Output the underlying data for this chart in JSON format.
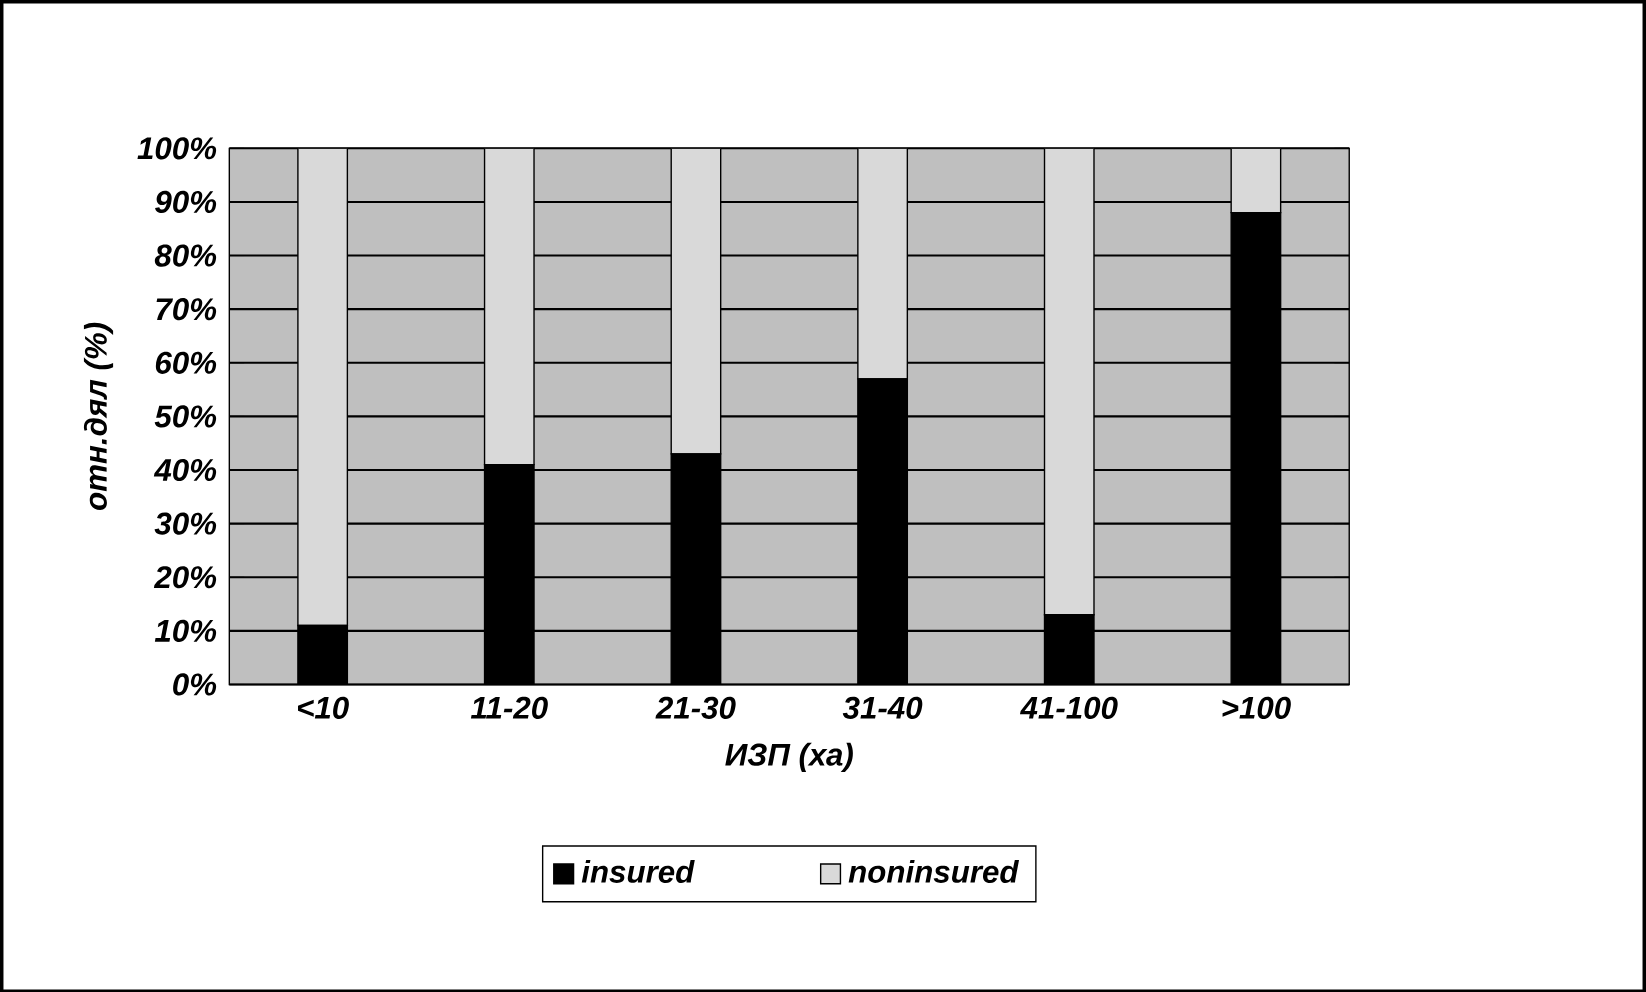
{
  "chart_data": {
    "type": "bar",
    "stacked": true,
    "xlabel": "ИЗП  (ха)",
    "ylabel": "отн.дял (%)",
    "categories": [
      "<10",
      "11-20",
      "21-30",
      "31-40",
      "41-100",
      ">100"
    ],
    "series": [
      {
        "name": "insured",
        "color": "#000000",
        "values": [
          11,
          41,
          43,
          57,
          13,
          88
        ]
      },
      {
        "name": "noninsured",
        "color": "#d9d9d9",
        "values": [
          89,
          59,
          57,
          43,
          87,
          12
        ]
      }
    ],
    "ylim": [
      0,
      100
    ],
    "yticks": [
      {
        "value": 0,
        "label": "0%"
      },
      {
        "value": 10,
        "label": "10%"
      },
      {
        "value": 20,
        "label": "20%"
      },
      {
        "value": 30,
        "label": "30%"
      },
      {
        "value": 40,
        "label": "40%"
      },
      {
        "value": 50,
        "label": "50%"
      },
      {
        "value": 60,
        "label": "60%"
      },
      {
        "value": 70,
        "label": "70%"
      },
      {
        "value": 80,
        "label": "80%"
      },
      {
        "value": 90,
        "label": "90%"
      },
      {
        "value": 100,
        "label": "100%"
      }
    ],
    "grid": "y",
    "legend": "bottom"
  }
}
